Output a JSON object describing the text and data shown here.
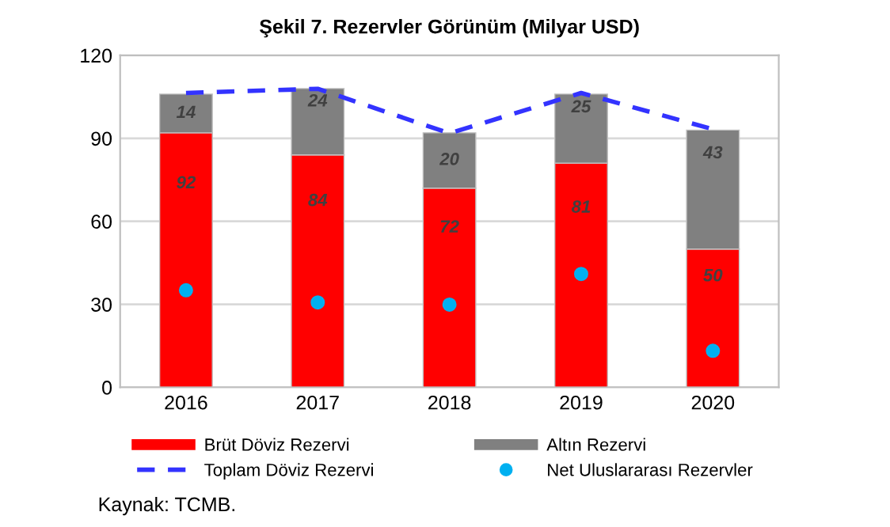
{
  "chart_data": {
    "type": "bar",
    "stacked": true,
    "title": "Şekil 7. Rezervler Görünüm (Milyar USD)",
    "categories": [
      "2016",
      "2017",
      "2018",
      "2019",
      "2020"
    ],
    "series": [
      {
        "name": "Brüt Döviz Rezervi",
        "color": "#ff0000",
        "values": [
          92,
          84,
          72,
          81,
          50
        ],
        "value_labels": [
          "92",
          "84",
          "72",
          "81",
          "50"
        ]
      },
      {
        "name": "Altın Rezervi",
        "color": "#808080",
        "values": [
          14,
          24,
          20,
          25,
          43
        ],
        "value_labels": [
          "14",
          "24",
          "20",
          "25",
          "43"
        ]
      },
      {
        "name": "Toplam Döviz Rezervi",
        "type": "line",
        "color": "#3333ff",
        "line_style": "dashed",
        "marker": "none",
        "values": [
          106.4,
          107.9,
          91.8,
          106.4,
          93.3
        ]
      },
      {
        "name": "Net Uluslararası Rezervler",
        "type": "scatter",
        "color": "#00b0f0",
        "marker": "circle",
        "values": [
          35.1,
          30.7,
          29.9,
          41,
          13.2
        ]
      }
    ],
    "ylim": [
      0,
      120
    ],
    "yticks": [
      0,
      30,
      60,
      90,
      120
    ],
    "grid": "y",
    "legend": "bottom",
    "annotations": [
      "Kaynak: TCMB."
    ]
  }
}
